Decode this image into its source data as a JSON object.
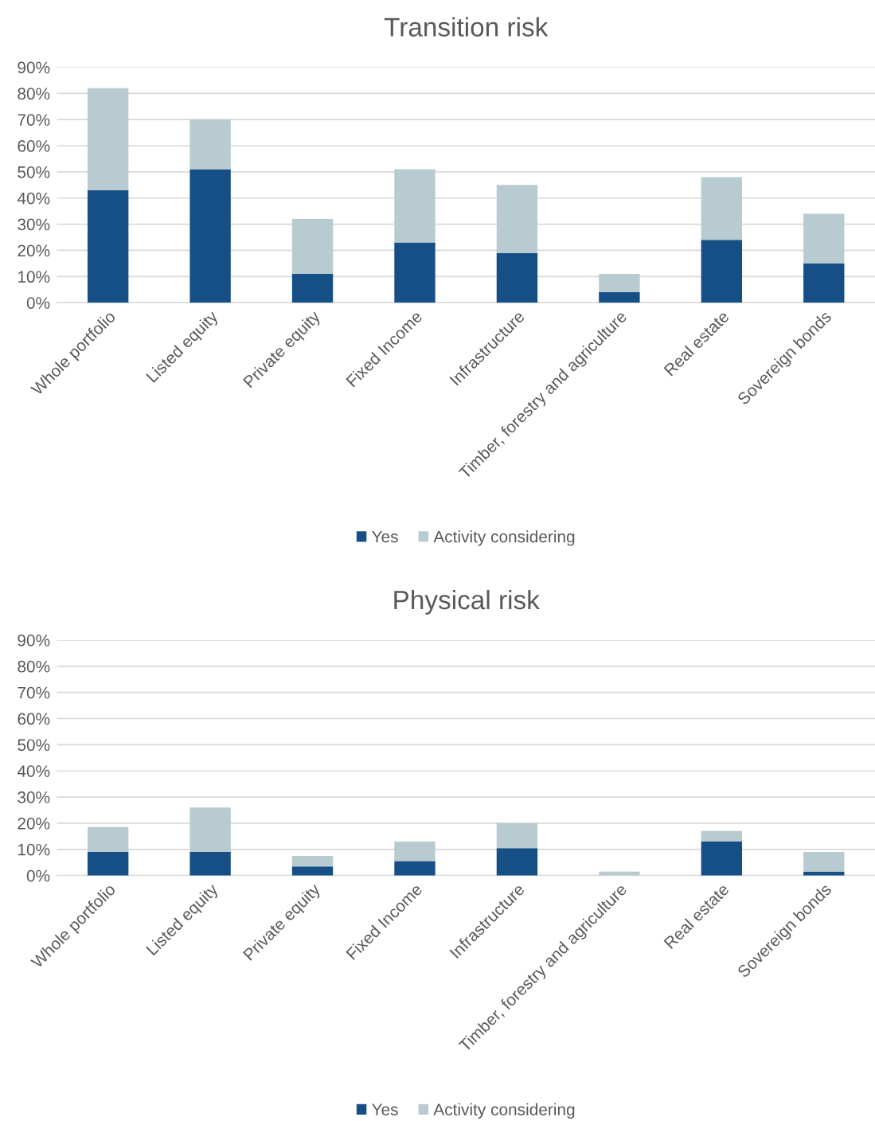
{
  "chart_data": [
    {
      "type": "bar",
      "title": "Transition risk",
      "stacked": true,
      "categories": [
        "Whole portfolio",
        "Listed equity",
        "Private equity",
        "Fixed Income",
        "Infrastructure",
        "Timber, forestry and agriculture",
        "Real estate",
        "Sovereign bonds"
      ],
      "series": [
        {
          "name": "Yes",
          "color": "#154f86",
          "values": [
            43,
            51,
            11,
            23,
            19,
            4,
            24,
            15
          ]
        },
        {
          "name": "Activity considering",
          "color": "#b8cbd0",
          "values": [
            39,
            19,
            21,
            28,
            26,
            7,
            24,
            19
          ]
        }
      ],
      "ylim": [
        0,
        90
      ],
      "yticks": [
        {
          "value": 0,
          "label": "0%"
        },
        {
          "value": 10,
          "label": "10%"
        },
        {
          "value": 20,
          "label": "20%"
        },
        {
          "value": 30,
          "label": "30%"
        },
        {
          "value": 40,
          "label": "40%"
        },
        {
          "value": 50,
          "label": "50%"
        },
        {
          "value": 60,
          "label": "60%"
        },
        {
          "value": 70,
          "label": "70%"
        },
        {
          "value": 80,
          "label": "80%"
        },
        {
          "value": 90,
          "label": "90%"
        }
      ],
      "grid": "y",
      "legend": "bottom"
    },
    {
      "type": "bar",
      "title": "Physical risk",
      "stacked": true,
      "categories": [
        "Whole portfolio",
        "Listed equity",
        "Private equity",
        "Fixed Income",
        "Infrastructure",
        "Timber, forestry and agriculture",
        "Real estate",
        "Sovereign bonds"
      ],
      "series": [
        {
          "name": "Yes",
          "color": "#154f86",
          "values": [
            9,
            9,
            3.5,
            5.5,
            10.5,
            0,
            13,
            1.5
          ]
        },
        {
          "name": "Activity considering",
          "color": "#b8cbd0",
          "values": [
            9.5,
            17,
            4,
            7.5,
            9.5,
            1.5,
            4,
            7.5
          ]
        }
      ],
      "ylim": [
        0,
        90
      ],
      "yticks": [
        {
          "value": 0,
          "label": "0%"
        },
        {
          "value": 10,
          "label": "10%"
        },
        {
          "value": 20,
          "label": "20%"
        },
        {
          "value": 30,
          "label": "30%"
        },
        {
          "value": 40,
          "label": "40%"
        },
        {
          "value": 50,
          "label": "50%"
        },
        {
          "value": 60,
          "label": "60%"
        },
        {
          "value": 70,
          "label": "70%"
        },
        {
          "value": 80,
          "label": "80%"
        },
        {
          "value": 90,
          "label": "90%"
        }
      ],
      "grid": "y",
      "legend": "bottom"
    }
  ]
}
